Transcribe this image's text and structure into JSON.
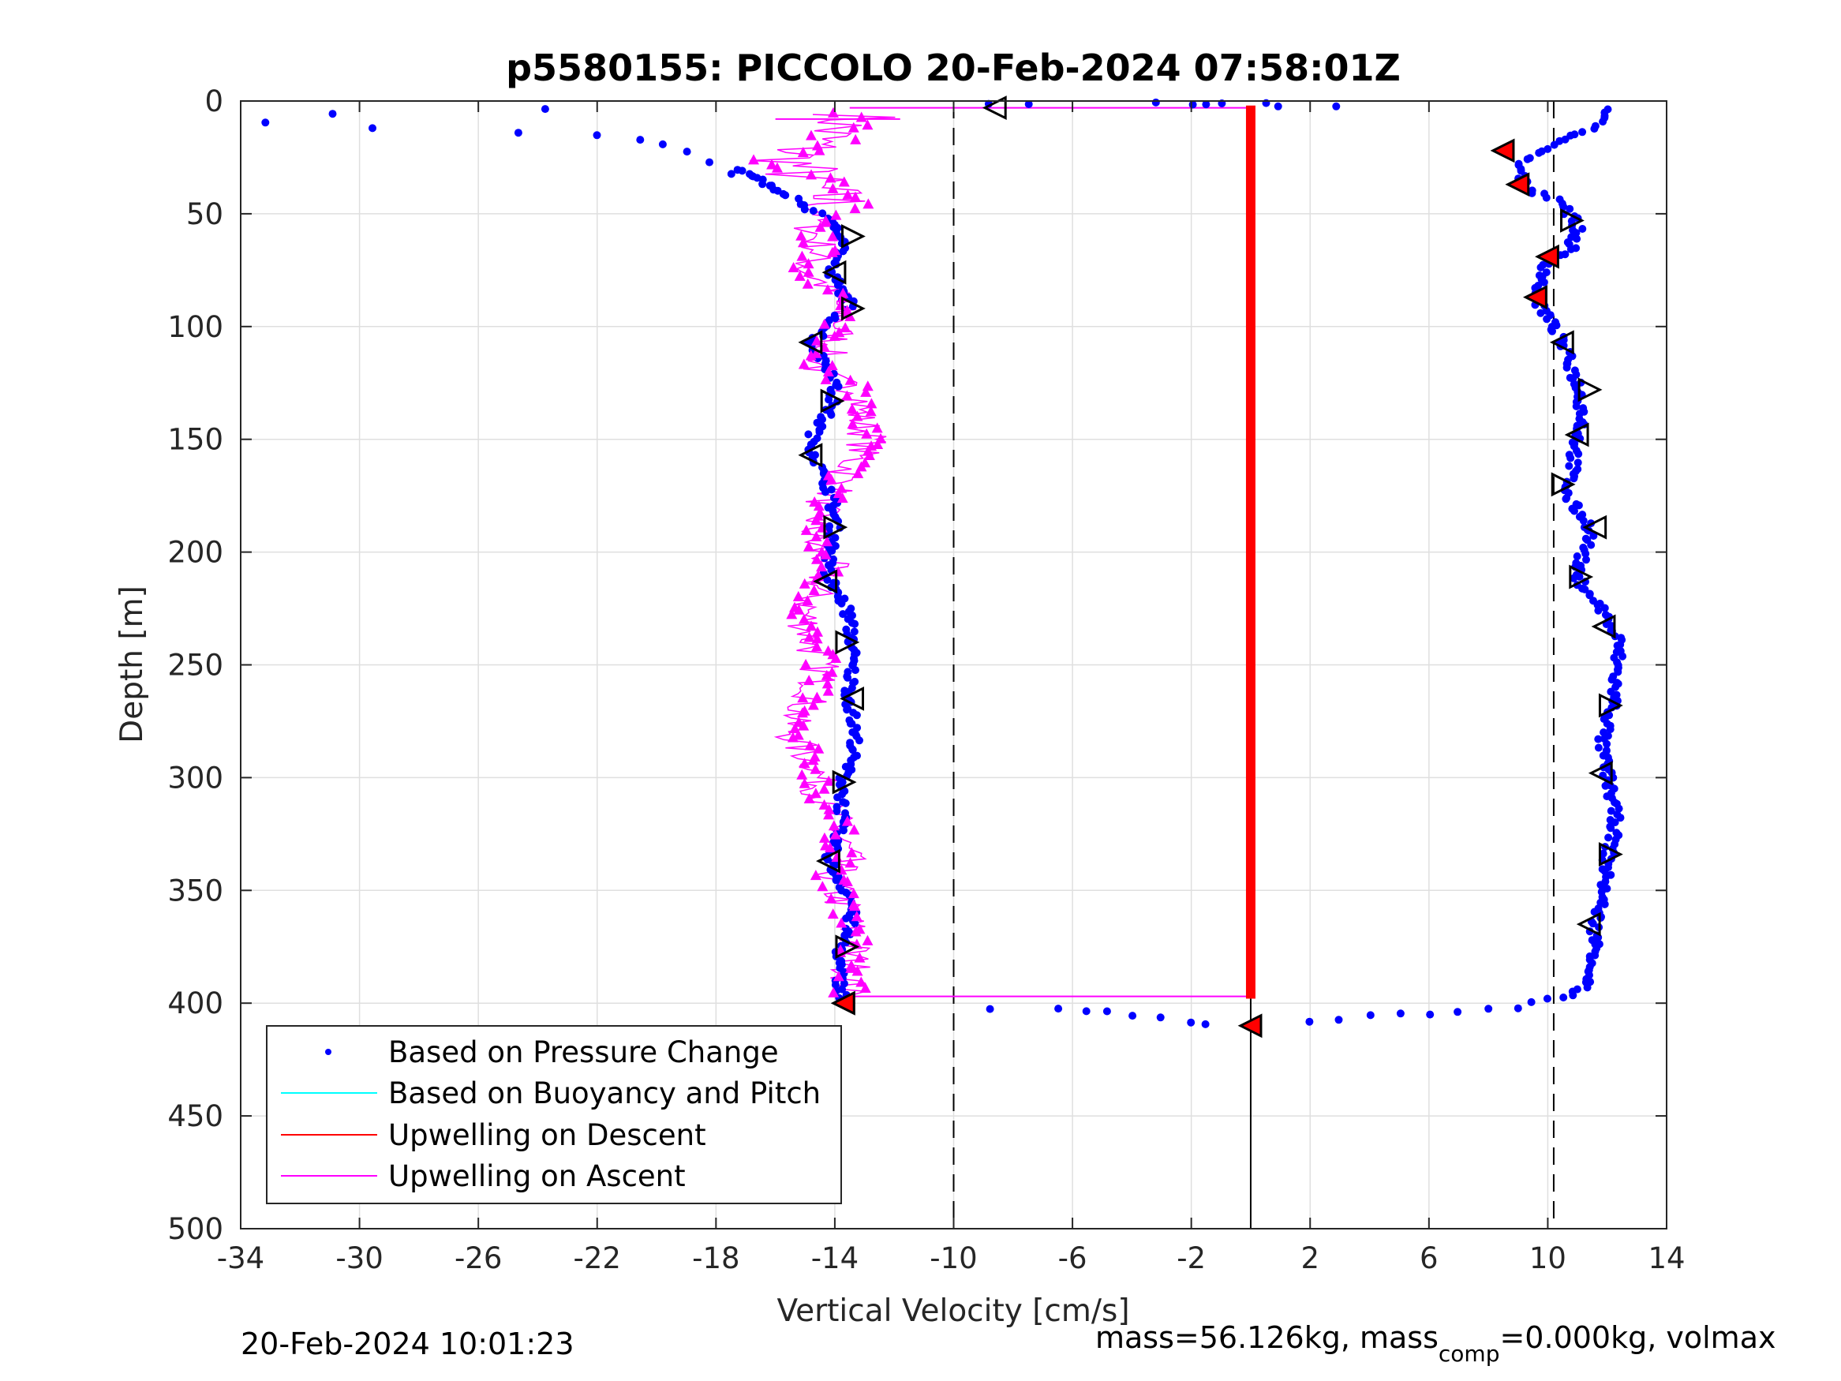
{
  "chart_data": {
    "type": "scatter",
    "title": "p5580155: PICCOLO 20-Feb-2024 07:58:01Z",
    "xlabel": "Vertical Velocity [cm/s]",
    "ylabel": "Depth [m]",
    "xlim": [
      -34,
      14
    ],
    "ylim": [
      0,
      500
    ],
    "y_reversed": true,
    "grid": true,
    "x_ticks": [
      -34,
      -30,
      -26,
      -22,
      -18,
      -14,
      -10,
      -6,
      -2,
      2,
      6,
      10,
      14
    ],
    "y_ticks": [
      0,
      50,
      100,
      150,
      200,
      250,
      300,
      350,
      400,
      450,
      500
    ],
    "legend_position": "bottom-left",
    "reference_lines_x": [
      -10,
      10.2
    ],
    "series": [
      {
        "name": "Based on Pressure Change",
        "color": "#0000ff",
        "marker": "dot",
        "descent_profile": [
          [
            -13.5,
            5
          ],
          [
            -14.5,
            15
          ],
          [
            -15.5,
            30
          ],
          [
            -15.2,
            45
          ],
          [
            -14.0,
            55
          ],
          [
            -13.6,
            62
          ],
          [
            -14.2,
            75
          ],
          [
            -13.5,
            90
          ],
          [
            -14.8,
            108
          ],
          [
            -14.0,
            122
          ],
          [
            -14.1,
            135
          ],
          [
            -14.8,
            150
          ],
          [
            -14.6,
            160
          ],
          [
            -14.1,
            175
          ],
          [
            -14.0,
            190
          ],
          [
            -14.3,
            210
          ],
          [
            -13.6,
            225
          ],
          [
            -13.4,
            240
          ],
          [
            -13.5,
            265
          ],
          [
            -13.3,
            285
          ],
          [
            -13.7,
            300
          ],
          [
            -13.8,
            320
          ],
          [
            -14.2,
            337
          ],
          [
            -13.4,
            355
          ],
          [
            -13.5,
            365
          ],
          [
            -13.9,
            380
          ],
          [
            -13.8,
            392
          ],
          [
            -13.7,
            400
          ]
        ],
        "ascent_profile": [
          [
            12.0,
            5
          ],
          [
            11.5,
            12
          ],
          [
            10.0,
            20
          ],
          [
            9.0,
            28
          ],
          [
            9.2,
            38
          ],
          [
            10.5,
            45
          ],
          [
            11.0,
            55
          ],
          [
            10.8,
            65
          ],
          [
            10.0,
            72
          ],
          [
            9.6,
            87
          ],
          [
            10.2,
            100
          ],
          [
            10.5,
            108
          ],
          [
            11.0,
            125
          ],
          [
            11.2,
            140
          ],
          [
            11.0,
            150
          ],
          [
            10.8,
            165
          ],
          [
            10.6,
            175
          ],
          [
            11.5,
            190
          ],
          [
            10.9,
            210
          ],
          [
            11.8,
            225
          ],
          [
            12.4,
            240
          ],
          [
            12.2,
            268
          ],
          [
            11.8,
            285
          ],
          [
            12.0,
            298
          ],
          [
            12.3,
            320
          ],
          [
            12.0,
            336
          ],
          [
            11.9,
            350
          ],
          [
            11.6,
            365
          ],
          [
            11.6,
            380
          ],
          [
            11.3,
            392
          ],
          [
            10.5,
            398
          ]
        ],
        "surface_points": [
          [
            -33.2,
            9
          ],
          [
            -30.9,
            6
          ],
          [
            -29.6,
            12
          ],
          [
            -24.7,
            14
          ],
          [
            -23.8,
            3
          ],
          [
            -22.0,
            15
          ],
          [
            -20.5,
            17
          ],
          [
            -19.8,
            19
          ],
          [
            -19.0,
            22
          ],
          [
            -18.2,
            27
          ],
          [
            -17.5,
            33
          ],
          [
            -8.8,
            1
          ],
          [
            -7.5,
            2
          ],
          [
            -3.2,
            1
          ],
          [
            -2.0,
            1
          ],
          [
            -1.5,
            1
          ],
          [
            -1.0,
            1
          ],
          [
            0.5,
            1
          ],
          [
            0.9,
            2
          ],
          [
            2.9,
            2
          ]
        ],
        "bottom_turn_points": [
          [
            -8.8,
            402
          ],
          [
            -6.5,
            403
          ],
          [
            -5.5,
            403
          ],
          [
            -4.8,
            404
          ],
          [
            -4.0,
            405
          ],
          [
            -3.0,
            407
          ],
          [
            -2.0,
            408
          ],
          [
            -1.5,
            409
          ],
          [
            2.0,
            408
          ],
          [
            3.0,
            407
          ],
          [
            4.0,
            406
          ],
          [
            5.0,
            405
          ],
          [
            6.0,
            405
          ],
          [
            7.0,
            404
          ],
          [
            8.0,
            403
          ],
          [
            9.0,
            402
          ],
          [
            9.5,
            400
          ],
          [
            10.0,
            398
          ]
        ]
      },
      {
        "name": "Based on Buoyancy and Pitch",
        "color": "#00ffff"
      },
      {
        "name": "Upwelling on Descent",
        "color": "#ff0000",
        "marker": "triangle",
        "x_value": 0,
        "depth_range": [
          2,
          398
        ]
      },
      {
        "name": "Upwelling on Ascent",
        "color": "#ff00ff",
        "marker": "triangle",
        "profile": [
          [
            -13.0,
            5
          ],
          [
            -14.0,
            12
          ],
          [
            -15.5,
            25
          ],
          [
            -15.0,
            35
          ],
          [
            -14.0,
            45
          ],
          [
            -14.8,
            55
          ],
          [
            -14.5,
            65
          ],
          [
            -15.0,
            75
          ],
          [
            -14.0,
            85
          ],
          [
            -13.8,
            100
          ],
          [
            -14.2,
            110
          ],
          [
            -14.6,
            120
          ],
          [
            -13.0,
            130
          ],
          [
            -13.2,
            140
          ],
          [
            -12.8,
            150
          ],
          [
            -13.4,
            160
          ],
          [
            -13.8,
            170
          ],
          [
            -14.5,
            180
          ],
          [
            -14.8,
            195
          ],
          [
            -14.2,
            205
          ],
          [
            -14.6,
            215
          ],
          [
            -15.0,
            228
          ],
          [
            -14.8,
            240
          ],
          [
            -14.5,
            250
          ],
          [
            -14.6,
            262
          ],
          [
            -15.5,
            275
          ],
          [
            -15.3,
            285
          ],
          [
            -14.6,
            295
          ],
          [
            -14.5,
            305
          ],
          [
            -14.0,
            320
          ],
          [
            -13.6,
            335
          ],
          [
            -14.2,
            345
          ],
          [
            -13.6,
            360
          ],
          [
            -13.4,
            372
          ],
          [
            -13.4,
            385
          ],
          [
            -13.6,
            395
          ]
        ],
        "connectors": [
          [
            -16.0,
            8,
            -11.8,
            8
          ],
          [
            -13.5,
            3,
            0,
            3
          ],
          [
            -13.5,
            397,
            0,
            397
          ]
        ]
      }
    ],
    "markers": {
      "open_descent": [
        [
          -8.6,
          3
        ],
        [
          -13.4,
          60
        ],
        [
          -14.0,
          76
        ],
        [
          -13.4,
          92
        ],
        [
          -14.8,
          107
        ],
        [
          -14.1,
          133
        ],
        [
          -14.8,
          157
        ],
        [
          -14.0,
          189
        ],
        [
          -14.3,
          213
        ],
        [
          -13.6,
          240
        ],
        [
          -13.4,
          265
        ],
        [
          -13.7,
          302
        ],
        [
          -14.2,
          337
        ],
        [
          -13.6,
          375
        ],
        [
          -13.7,
          400
        ]
      ],
      "open_ascent": [
        [
          10.8,
          53
        ],
        [
          10.5,
          107
        ],
        [
          11.4,
          128
        ],
        [
          11.0,
          148
        ],
        [
          10.5,
          170
        ],
        [
          11.6,
          189
        ],
        [
          11.1,
          211
        ],
        [
          11.9,
          233
        ],
        [
          12.1,
          268
        ],
        [
          11.8,
          298
        ],
        [
          12.1,
          334
        ],
        [
          11.4,
          365
        ]
      ],
      "filled_red": [
        [
          8.5,
          22
        ],
        [
          9.0,
          37
        ],
        [
          10.0,
          69
        ],
        [
          9.6,
          87
        ],
        [
          -13.7,
          400
        ],
        [
          0.0,
          410
        ]
      ]
    }
  },
  "footer": {
    "timestamp": "20-Feb-2024 10:01:23",
    "params_prefix": "mass=56.126kg, mass",
    "params_sub": "comp",
    "params_suffix": "=0.000kg, volmax"
  }
}
